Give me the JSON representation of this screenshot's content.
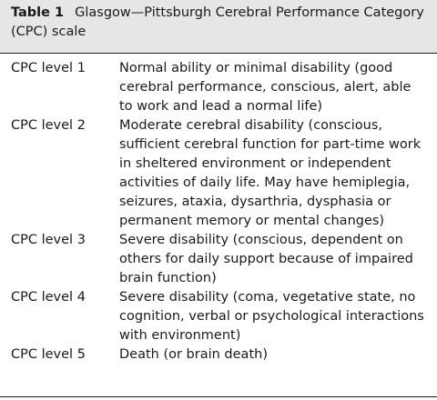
{
  "table": {
    "label": "Table 1",
    "title": "Glasgow—Pittsburgh Cerebral Performance Category (CPC) scale",
    "rows": [
      {
        "level": "CPC level 1",
        "description": "Normal ability or minimal disability (good cerebral performance, conscious, alert, able to work and lead a normal life)"
      },
      {
        "level": "CPC level 2",
        "description": "Moderate cerebral disability (conscious, sufficient cerebral function for part-time work in sheltered environment or independent activities of daily life. May have hemiplegia, seizures, ataxia, dysarthria, dysphasia or permanent memory or mental changes)"
      },
      {
        "level": "CPC level 3",
        "description": "Severe disability (conscious, dependent on others for daily support because of impaired brain function)"
      },
      {
        "level": "CPC level 4",
        "description": "Severe disability (coma, vegetative state, no cognition, verbal or psychological interactions with environment)"
      },
      {
        "level": "CPC level 5",
        "description": "Death (or brain death)"
      }
    ]
  }
}
